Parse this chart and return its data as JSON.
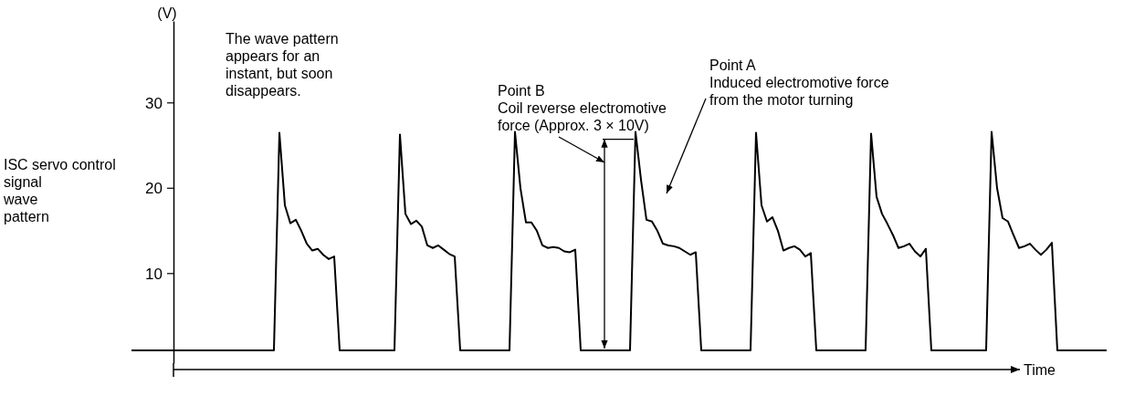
{
  "chart_data": {
    "type": "line",
    "ylabel": "(V)",
    "xlabel": "Time",
    "ylim": [
      -0.5,
      39.6
    ],
    "yticks": [
      10,
      20,
      30
    ],
    "tick_labels": "y",
    "grid": false,
    "marker": "none",
    "line_style": "solid",
    "categories": [
      null,
      null,
      null,
      null,
      null,
      null,
      null,
      null,
      null,
      null,
      null,
      null,
      null,
      null,
      null,
      null,
      null,
      null,
      null,
      null,
      null,
      null,
      null,
      null,
      null,
      null,
      null,
      null,
      null,
      null,
      null,
      null,
      null,
      null,
      null,
      null,
      null,
      null,
      null,
      null,
      null,
      null,
      null,
      null,
      null,
      null,
      null,
      null,
      null,
      null,
      null,
      null,
      null,
      null,
      null,
      null,
      null,
      null,
      null,
      null,
      null,
      null,
      null,
      null,
      null,
      null,
      null,
      null,
      null,
      null,
      null,
      null,
      null,
      null,
      null,
      null,
      null,
      null,
      null,
      null,
      null,
      null,
      null,
      null,
      null,
      null,
      null,
      null,
      null,
      null,
      null,
      null,
      null,
      null,
      null,
      null,
      null,
      null,
      null,
      null,
      null,
      null,
      null,
      null,
      null,
      null,
      null,
      null,
      null,
      null,
      null,
      null,
      null,
      null,
      null,
      null,
      null,
      null,
      null,
      null,
      null,
      null,
      null,
      null,
      null,
      null,
      null,
      null,
      null,
      null,
      null,
      null,
      null,
      null,
      null,
      null,
      null,
      null,
      null,
      null,
      null,
      null,
      null,
      null,
      null,
      null,
      null,
      null,
      null,
      null,
      null,
      null,
      null,
      null,
      null,
      null,
      null,
      null,
      null,
      null,
      null,
      null,
      null,
      null,
      null,
      null,
      null,
      null,
      null,
      null,
      null,
      null,
      null,
      null,
      null,
      null,
      null,
      null,
      null
    ],
    "series": [
      {
        "color": "#000000",
        "values": [
          1,
          1,
          1,
          1,
          1,
          1,
          1,
          1,
          1,
          1,
          1,
          1,
          1,
          1,
          1,
          1,
          1,
          1,
          1,
          1,
          1,
          1,
          1,
          1,
          1,
          1,
          1,
          26.5,
          18,
          15.9,
          16.3,
          15,
          13.5,
          12.7,
          12.9,
          12.2,
          11.7,
          12,
          1,
          1,
          1,
          1,
          1,
          1,
          1,
          1,
          1,
          1,
          1,
          26.3,
          17,
          15.8,
          16.2,
          15.5,
          13.3,
          13,
          13.3,
          12.8,
          12.3,
          12,
          1,
          1,
          1,
          1,
          1,
          1,
          1,
          1,
          1,
          1,
          26.6,
          20,
          16,
          16,
          15,
          13.3,
          13,
          13.1,
          13,
          12.6,
          12.5,
          12.8,
          1,
          1,
          1,
          1,
          1,
          1,
          1,
          1,
          1,
          1,
          26.6,
          21,
          16.3,
          16.1,
          15,
          13.5,
          13.3,
          13.2,
          13,
          12.6,
          12.2,
          12.5,
          1,
          1,
          1,
          1,
          1,
          1,
          1,
          1,
          1,
          1,
          26.5,
          18,
          16.1,
          16.6,
          15,
          12.7,
          13,
          13.2,
          12.8,
          12,
          12.4,
          1,
          1,
          1,
          1,
          1,
          1,
          1,
          1,
          1,
          1,
          26.4,
          19,
          17,
          15.8,
          14.5,
          13,
          13.2,
          13.5,
          12.6,
          12,
          12.9,
          1,
          1,
          1,
          1,
          1,
          1,
          1,
          1,
          1,
          1,
          1,
          26.6,
          20,
          16.5,
          16.1,
          14.5,
          13,
          13.2,
          13.5,
          12.8,
          12.2,
          12.8,
          13.6,
          1,
          1,
          1,
          1,
          1,
          1,
          1,
          1,
          1,
          1
        ]
      }
    ],
    "annotations": [
      "ISC servo control\nsignal\nwave\npattern",
      "The wave pattern\nappears for an\ninstant, but soon\ndisappears.",
      "Point B\nCoil reverse electromotive\nforce (Approx. 3 × 10V)",
      "Point A\nInduced electromotive force\nfrom the motor turning"
    ]
  }
}
